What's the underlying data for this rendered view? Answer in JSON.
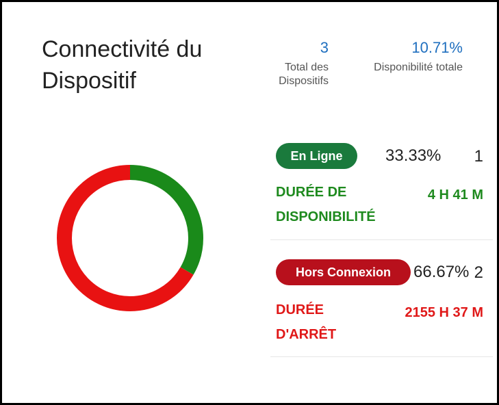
{
  "header": {
    "title": "Connectivité du Dispositif"
  },
  "stats": {
    "total": {
      "value": "3",
      "label": "Total des Dispositifs"
    },
    "availability": {
      "value": "10.71%",
      "label": "Disponibilité totale"
    }
  },
  "online": {
    "badge": "En Ligne",
    "percent": "33.33%",
    "count": "1",
    "duration_label": "DURÉE DE DISPONIBILITÉ",
    "duration_value": "4 H 41 M",
    "fraction": 0.3333
  },
  "offline": {
    "badge": "Hors Connexion",
    "percent": "66.67%",
    "count": "2",
    "duration_label": "DURÉE D'ARRÊT",
    "duration_value": "2155 H 37 M",
    "fraction": 0.6667
  },
  "colors": {
    "online": "#1a8a1a",
    "offline": "#e81212",
    "accent": "#1f6fbf"
  }
}
